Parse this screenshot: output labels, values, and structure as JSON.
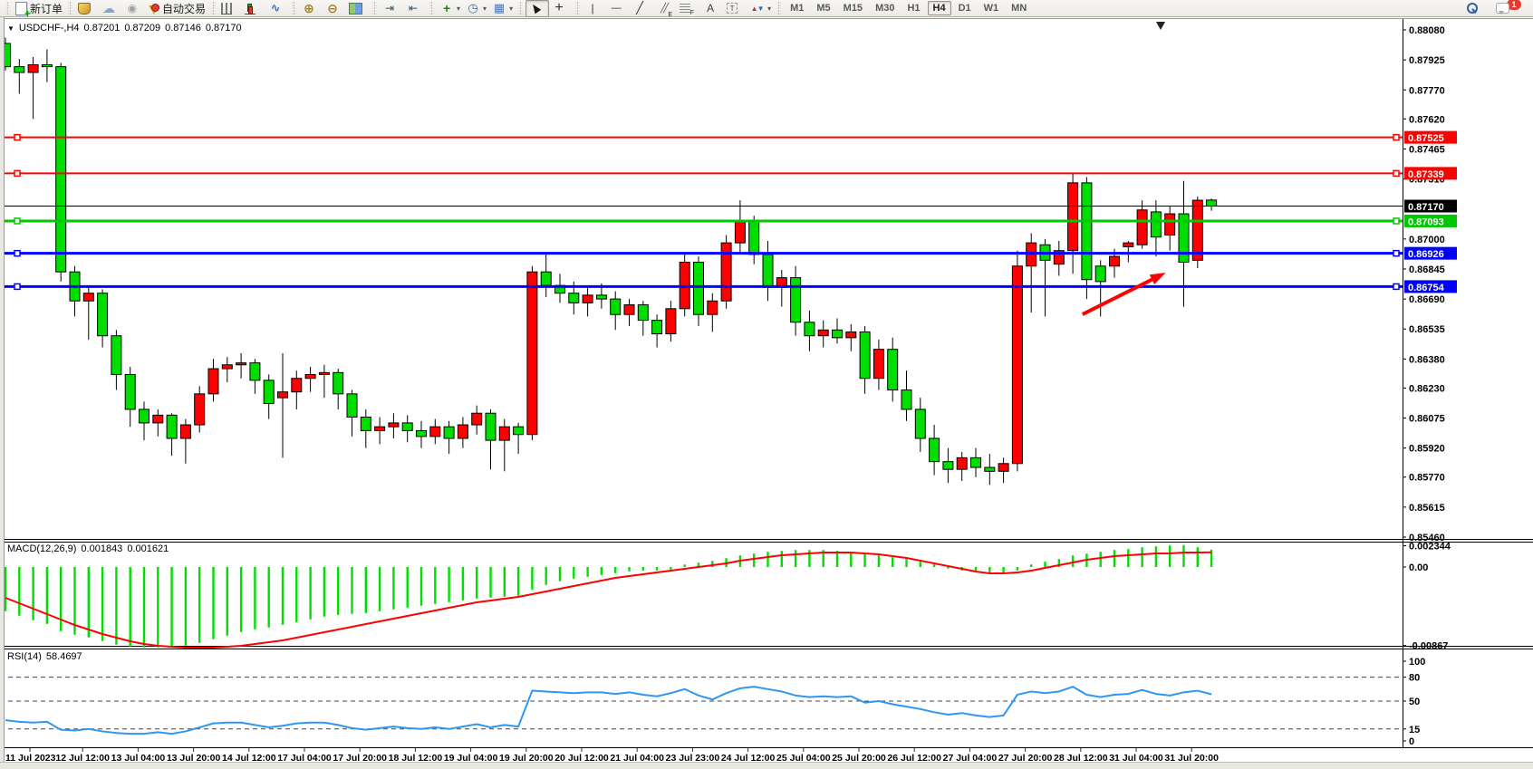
{
  "toolbar": {
    "groups": [
      {
        "items": [
          {
            "name": "new-order-button",
            "icon": "neworder",
            "label": "新订单"
          }
        ]
      },
      {
        "items": [
          {
            "name": "market-watch-button",
            "icon": "marketwatch"
          },
          {
            "name": "navigator-button",
            "icon": "navigator"
          },
          {
            "name": "terminal-button",
            "icon": "terminal"
          },
          {
            "name": "auto-trading-button",
            "icon": "autotrade",
            "label": "自动交易"
          }
        ]
      },
      {
        "items": [
          {
            "name": "bar-chart-button",
            "icon": "barchart"
          },
          {
            "name": "candlestick-chart-button",
            "icon": "candlechart"
          },
          {
            "name": "line-chart-button",
            "icon": "linechart"
          }
        ]
      },
      {
        "items": [
          {
            "name": "zoom-in-button",
            "icon": "zoomin"
          },
          {
            "name": "zoom-out-button",
            "icon": "zoomout"
          },
          {
            "name": "tile-windows-button",
            "icon": "tiles"
          }
        ]
      },
      {
        "items": [
          {
            "name": "auto-scroll-button",
            "icon": "autoscroll"
          },
          {
            "name": "chart-shift-button",
            "icon": "chartshift"
          }
        ]
      },
      {
        "items": [
          {
            "name": "indicators-button",
            "icon": "indicators",
            "dropdown": true
          },
          {
            "name": "periods-button",
            "icon": "periods",
            "dropdown": true
          },
          {
            "name": "templates-button",
            "icon": "templates",
            "dropdown": true
          }
        ]
      },
      {
        "items": [
          {
            "name": "cursor-button",
            "icon": "cursor",
            "pressed": true
          },
          {
            "name": "crosshair-button",
            "icon": "crosshair"
          }
        ]
      },
      {
        "items": [
          {
            "name": "vertical-line-button",
            "icon": "vline"
          },
          {
            "name": "horizontal-line-button",
            "icon": "hline"
          },
          {
            "name": "trendline-button",
            "icon": "trendline"
          },
          {
            "name": "equidistant-channel-button",
            "icon": "channel"
          },
          {
            "name": "fibonacci-button",
            "icon": "fibo"
          },
          {
            "name": "text-button",
            "icon": "text"
          },
          {
            "name": "text-label-button",
            "icon": "textlabel"
          },
          {
            "name": "arrows-button",
            "icon": "shapes",
            "dropdown": true
          }
        ]
      },
      {
        "type": "timeframes",
        "items": [
          {
            "name": "timeframe-m1",
            "label": "M1"
          },
          {
            "name": "timeframe-m5",
            "label": "M5"
          },
          {
            "name": "timeframe-m15",
            "label": "M15"
          },
          {
            "name": "timeframe-m30",
            "label": "M30"
          },
          {
            "name": "timeframe-h1",
            "label": "H1"
          },
          {
            "name": "timeframe-h4",
            "label": "H4",
            "pressed": true
          },
          {
            "name": "timeframe-d1",
            "label": "D1"
          },
          {
            "name": "timeframe-w1",
            "label": "W1"
          },
          {
            "name": "timeframe-mn",
            "label": "MN"
          }
        ]
      }
    ],
    "right_items": [
      {
        "name": "search-button",
        "icon": "search"
      },
      {
        "name": "notifications-button",
        "icon": "chat",
        "badge": "1"
      }
    ]
  },
  "chart_data": [
    {
      "id": "price",
      "type": "candlestick",
      "symbol_period": "USDCHF-,H4",
      "open": "0.87201",
      "high": "0.87209",
      "low": "0.87146",
      "close": "0.87170",
      "ylim": [
        0.8546,
        0.8808
      ],
      "y_ticks": [
        "0.88080",
        "0.87925",
        "0.87770",
        "0.87620",
        "0.87465",
        "0.87310",
        "0.87000",
        "0.86845",
        "0.86690",
        "0.86535",
        "0.86380",
        "0.86230",
        "0.86075",
        "0.85920",
        "0.85770",
        "0.85615",
        "0.85460"
      ],
      "badges": [
        {
          "text": "0.87525",
          "bg": "#FF0000"
        },
        {
          "text": "0.87339",
          "bg": "#FF0000"
        },
        {
          "text": "0.87170",
          "bg": "#000000"
        },
        {
          "text": "0.87093",
          "bg": "#00C800"
        },
        {
          "text": "0.86926",
          "bg": "#0000FF"
        },
        {
          "text": "0.86754",
          "bg": "#0000FF"
        }
      ],
      "hlines": [
        {
          "price": 0.87525,
          "color": "#FF0000",
          "w": 2
        },
        {
          "price": 0.87339,
          "color": "#FF0000",
          "w": 2
        },
        {
          "price": 0.87093,
          "color": "#00C800",
          "w": 3
        },
        {
          "price": 0.86926,
          "color": "#0000FF",
          "w": 3
        },
        {
          "price": 0.86754,
          "color": "#0000FF",
          "w": 3
        }
      ],
      "bid_line": {
        "price": 0.8717,
        "color": "#000000",
        "w": 1
      },
      "colors": {
        "up": "#FF0000",
        "down": "#00DE00",
        "wick": "#000000"
      },
      "x_labels": [
        "11 Jul 2023",
        "12 Jul 12:00",
        "13 Jul 04:00",
        "13 Jul 20:00",
        "14 Jul 12:00",
        "17 Jul 04:00",
        "17 Jul 20:00",
        "18 Jul 12:00",
        "19 Jul 04:00",
        "19 Jul 20:00",
        "20 Jul 12:00",
        "21 Jul 04:00",
        "23 Jul 23:00",
        "24 Jul 12:00",
        "25 Jul 04:00",
        "25 Jul 20:00",
        "26 Jul 12:00",
        "27 Jul 04:00",
        "27 Jul 20:00",
        "28 Jul 12:00",
        "31 Jul 04:00",
        "31 Jul 20:00"
      ],
      "arrow": {
        "type": "arrow",
        "color": "#FF0000",
        "from_index": 77.7,
        "from_price": 0.86611,
        "to_index": 83.7,
        "to_price": 0.86826
      },
      "candles": [
        [
          0.8801,
          0.8804,
          0.8787,
          0.8789
        ],
        [
          0.8789,
          0.8793,
          0.8775,
          0.8786
        ],
        [
          0.8786,
          0.8794,
          0.8762,
          0.879
        ],
        [
          0.879,
          0.8798,
          0.8781,
          0.8789
        ],
        [
          0.8789,
          0.8791,
          0.8678,
          0.8683
        ],
        [
          0.8683,
          0.8686,
          0.866,
          0.8668
        ],
        [
          0.8668,
          0.8676,
          0.8648,
          0.8672
        ],
        [
          0.8672,
          0.8674,
          0.8644,
          0.865
        ],
        [
          0.865,
          0.8653,
          0.8622,
          0.863
        ],
        [
          0.863,
          0.8634,
          0.8603,
          0.8612
        ],
        [
          0.8612,
          0.8616,
          0.8596,
          0.8605
        ],
        [
          0.8605,
          0.8612,
          0.8598,
          0.8609
        ],
        [
          0.8609,
          0.861,
          0.8588,
          0.8597
        ],
        [
          0.8597,
          0.8607,
          0.8584,
          0.8604
        ],
        [
          0.8604,
          0.8624,
          0.86,
          0.862
        ],
        [
          0.862,
          0.8638,
          0.8616,
          0.8633
        ],
        [
          0.8633,
          0.8639,
          0.8626,
          0.8635
        ],
        [
          0.8635,
          0.8641,
          0.8628,
          0.8636
        ],
        [
          0.8636,
          0.8638,
          0.862,
          0.8627
        ],
        [
          0.8627,
          0.863,
          0.8607,
          0.8615
        ],
        [
          0.8618,
          0.8641,
          0.8587,
          0.8621
        ],
        [
          0.8621,
          0.8632,
          0.8612,
          0.8628
        ],
        [
          0.8628,
          0.8634,
          0.8621,
          0.863
        ],
        [
          0.863,
          0.8635,
          0.8618,
          0.8631
        ],
        [
          0.8631,
          0.8633,
          0.8612,
          0.862
        ],
        [
          0.862,
          0.8622,
          0.8598,
          0.8608
        ],
        [
          0.8608,
          0.8612,
          0.8592,
          0.8601
        ],
        [
          0.8601,
          0.8608,
          0.8594,
          0.8603
        ],
        [
          0.8603,
          0.861,
          0.8597,
          0.8605
        ],
        [
          0.8605,
          0.8609,
          0.8595,
          0.8601
        ],
        [
          0.8601,
          0.8606,
          0.8592,
          0.8598
        ],
        [
          0.8598,
          0.8607,
          0.8594,
          0.8603
        ],
        [
          0.8603,
          0.8606,
          0.8589,
          0.8597
        ],
        [
          0.8597,
          0.8608,
          0.8592,
          0.8604
        ],
        [
          0.8604,
          0.8614,
          0.8599,
          0.861
        ],
        [
          0.861,
          0.8612,
          0.8581,
          0.8596
        ],
        [
          0.8596,
          0.8607,
          0.858,
          0.8603
        ],
        [
          0.8603,
          0.8605,
          0.8589,
          0.8599
        ],
        [
          0.8599,
          0.8686,
          0.8596,
          0.8683
        ],
        [
          0.8683,
          0.8692,
          0.867,
          0.8676
        ],
        [
          0.8676,
          0.8682,
          0.8667,
          0.8672
        ],
        [
          0.8672,
          0.8678,
          0.8661,
          0.8667
        ],
        [
          0.8667,
          0.8675,
          0.866,
          0.8671
        ],
        [
          0.8671,
          0.8677,
          0.8664,
          0.8669
        ],
        [
          0.8669,
          0.8673,
          0.8653,
          0.8661
        ],
        [
          0.8661,
          0.8669,
          0.8655,
          0.8666
        ],
        [
          0.8666,
          0.8668,
          0.865,
          0.8658
        ],
        [
          0.8658,
          0.8661,
          0.8644,
          0.8651
        ],
        [
          0.8651,
          0.8668,
          0.8647,
          0.8664
        ],
        [
          0.8664,
          0.8692,
          0.866,
          0.8688
        ],
        [
          0.8688,
          0.8691,
          0.8655,
          0.8661
        ],
        [
          0.8661,
          0.8672,
          0.8652,
          0.8668
        ],
        [
          0.8668,
          0.8702,
          0.8664,
          0.8698
        ],
        [
          0.8698,
          0.872,
          0.8692,
          0.8709
        ],
        [
          0.8709,
          0.8712,
          0.8687,
          0.8692
        ],
        [
          0.8692,
          0.8699,
          0.8668,
          0.8675
        ],
        [
          0.8675,
          0.8684,
          0.8665,
          0.868
        ],
        [
          0.868,
          0.8686,
          0.865,
          0.8657
        ],
        [
          0.8657,
          0.8663,
          0.8642,
          0.865
        ],
        [
          0.865,
          0.8658,
          0.8644,
          0.8653
        ],
        [
          0.8653,
          0.8659,
          0.8646,
          0.8649
        ],
        [
          0.8649,
          0.8656,
          0.8642,
          0.8652
        ],
        [
          0.8652,
          0.8655,
          0.862,
          0.8628
        ],
        [
          0.8628,
          0.8648,
          0.8622,
          0.8643
        ],
        [
          0.8643,
          0.8649,
          0.8616,
          0.8622
        ],
        [
          0.8622,
          0.8632,
          0.8606,
          0.8612
        ],
        [
          0.8612,
          0.8618,
          0.859,
          0.8597
        ],
        [
          0.8597,
          0.8604,
          0.8578,
          0.8585
        ],
        [
          0.8585,
          0.8592,
          0.8574,
          0.8581
        ],
        [
          0.8581,
          0.859,
          0.8575,
          0.8587
        ],
        [
          0.8587,
          0.8592,
          0.8577,
          0.8582
        ],
        [
          0.8582,
          0.8589,
          0.8573,
          0.858
        ],
        [
          0.858,
          0.8587,
          0.8574,
          0.8584
        ],
        [
          0.8584,
          0.8694,
          0.858,
          0.8686
        ],
        [
          0.8686,
          0.8703,
          0.8662,
          0.8698
        ],
        [
          0.8697,
          0.87,
          0.866,
          0.8689
        ],
        [
          0.8687,
          0.8699,
          0.8681,
          0.8694
        ],
        [
          0.8694,
          0.8734,
          0.8682,
          0.8729
        ],
        [
          0.8729,
          0.8732,
          0.8669,
          0.8679
        ],
        [
          0.8686,
          0.8689,
          0.866,
          0.8678
        ],
        [
          0.8686,
          0.8695,
          0.868,
          0.8691
        ],
        [
          0.8696,
          0.8699,
          0.8688,
          0.8698
        ],
        [
          0.8697,
          0.872,
          0.8695,
          0.8715
        ],
        [
          0.8714,
          0.872,
          0.8691,
          0.8701
        ],
        [
          0.8702,
          0.8717,
          0.8694,
          0.8713
        ],
        [
          0.8713,
          0.873,
          0.8665,
          0.8688
        ],
        [
          0.8689,
          0.8722,
          0.8685,
          0.872
        ],
        [
          0.87201,
          0.87209,
          0.87146,
          0.8717
        ]
      ]
    },
    {
      "id": "macd",
      "type": "bar+line",
      "label": "MACD(12,26,9)",
      "value_main": "0.001843",
      "value_signal": "0.001621",
      "y_labels": [
        {
          "text": "0.002344",
          "v": 0.002344
        },
        {
          "text": "0.00",
          "v": 0.0
        },
        {
          "text": "-0.00867",
          "v": -0.00867
        }
      ],
      "colors": {
        "histogram": "#00E000",
        "signal": "#FF0000"
      },
      "histogram": [
        -0.0048,
        -0.0053,
        -0.0058,
        -0.0062,
        -0.007,
        -0.0074,
        -0.0077,
        -0.0081,
        -0.0085,
        -0.0087,
        -0.0088,
        -0.0088,
        -0.0088,
        -0.0086,
        -0.0083,
        -0.0079,
        -0.0075,
        -0.0071,
        -0.0068,
        -0.0066,
        -0.0063,
        -0.006,
        -0.0057,
        -0.0054,
        -0.0052,
        -0.0051,
        -0.005,
        -0.0048,
        -0.0046,
        -0.0044,
        -0.0042,
        -0.004,
        -0.0038,
        -0.0036,
        -0.0034,
        -0.0033,
        -0.0032,
        -0.0031,
        -0.0024,
        -0.0019,
        -0.0015,
        -0.0012,
        -0.001,
        -0.0008,
        -0.0006,
        -0.0004,
        -0.0003,
        -0.0003,
        -0.0002,
        0.0002,
        0.0004,
        0.0006,
        0.0009,
        0.0012,
        0.0014,
        0.0016,
        0.0017,
        0.0018,
        0.0018,
        0.0018,
        0.0017,
        0.0016,
        0.0014,
        0.0012,
        0.001,
        0.0008,
        0.0005,
        0.0002,
        -0.0001,
        -0.0003,
        -0.0005,
        -0.0006,
        -0.0006,
        -0.0003,
        0.0002,
        0.0005,
        0.0008,
        0.0012,
        0.0014,
        0.0016,
        0.0018,
        0.0019,
        0.0021,
        0.0022,
        0.0023,
        0.00234,
        0.0021,
        0.00184
      ],
      "signal": [
        -0.0034,
        -0.004,
        -0.0046,
        -0.0052,
        -0.0058,
        -0.0064,
        -0.0069,
        -0.0074,
        -0.0078,
        -0.0082,
        -0.0085,
        -0.0087,
        -0.0088,
        -0.0089,
        -0.0089,
        -0.0089,
        -0.0088,
        -0.0087,
        -0.0085,
        -0.0083,
        -0.0081,
        -0.0078,
        -0.0075,
        -0.0072,
        -0.0069,
        -0.0066,
        -0.0063,
        -0.006,
        -0.0057,
        -0.0054,
        -0.0051,
        -0.0048,
        -0.0045,
        -0.0042,
        -0.0039,
        -0.0037,
        -0.0035,
        -0.0033,
        -0.003,
        -0.0027,
        -0.0024,
        -0.0021,
        -0.0018,
        -0.0015,
        -0.0012,
        -0.001,
        -0.0008,
        -0.0006,
        -0.0004,
        -0.0002,
        0.0,
        0.0002,
        0.0004,
        0.0007,
        0.0009,
        0.0011,
        0.0013,
        0.0014,
        0.0015,
        0.0016,
        0.0016,
        0.0016,
        0.0015,
        0.0014,
        0.0012,
        0.001,
        0.0007,
        0.0004,
        0.0001,
        -0.0002,
        -0.0005,
        -0.0007,
        -0.0007,
        -0.0006,
        -0.0004,
        -0.0001,
        0.0002,
        0.0005,
        0.0008,
        0.001,
        0.0012,
        0.0013,
        0.0014,
        0.0015,
        0.0015,
        0.0016,
        0.0016,
        0.00162
      ]
    },
    {
      "id": "rsi",
      "type": "line",
      "label": "RSI(14)",
      "value": "58.4697",
      "color": "#2E97F2",
      "levels": [
        80,
        50,
        15
      ],
      "y_labels": [
        {
          "text": "100",
          "v": 100
        },
        {
          "text": "80",
          "v": 80
        },
        {
          "text": "50",
          "v": 50
        },
        {
          "text": "15",
          "v": 15
        },
        {
          "text": "0",
          "v": 0
        }
      ],
      "values": [
        26,
        24,
        23,
        24,
        14,
        13,
        15,
        12,
        10,
        9,
        9,
        11,
        9,
        12,
        17,
        22,
        23,
        23,
        20,
        17,
        19,
        22,
        23,
        23,
        20,
        16,
        14,
        16,
        18,
        16,
        15,
        17,
        15,
        18,
        21,
        17,
        20,
        18,
        63,
        62,
        61,
        60,
        61,
        61,
        59,
        61,
        58,
        56,
        60,
        65,
        57,
        52,
        60,
        66,
        68,
        65,
        62,
        57,
        55,
        56,
        55,
        56,
        48,
        50,
        46,
        43,
        40,
        36,
        33,
        35,
        32,
        30,
        32,
        58,
        62,
        60,
        62,
        68,
        58,
        55,
        58,
        59,
        64,
        59,
        57,
        61,
        63,
        58.5
      ]
    }
  ]
}
